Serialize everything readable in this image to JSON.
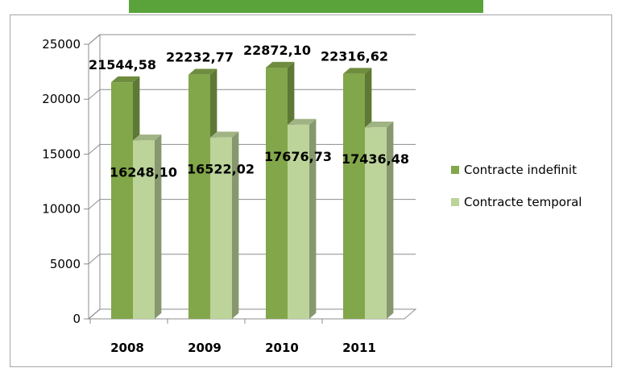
{
  "chart_data": {
    "type": "bar",
    "categories": [
      "2008",
      "2009",
      "2010",
      "2011"
    ],
    "series": [
      {
        "name": "Contracte indefinit",
        "color": "#82a64a",
        "values": [
          21544.58,
          22232.77,
          22872.1,
          22316.62
        ],
        "labels": [
          "21544,58",
          "22232,77",
          "22872,10",
          "22316,62"
        ]
      },
      {
        "name": "Contracte temporal",
        "color": "#bcd39a",
        "values": [
          16248.1,
          16522.02,
          17676.73,
          17436.48
        ],
        "labels": [
          "16248,10",
          "16522,02",
          "17676,73",
          "17436,48"
        ]
      }
    ],
    "ylim": [
      0,
      25000
    ],
    "yticks": [
      "0",
      "5000",
      "10000",
      "15000",
      "20000",
      "25000"
    ],
    "grid": true,
    "legend_position": "right",
    "style": "3d-columns"
  }
}
